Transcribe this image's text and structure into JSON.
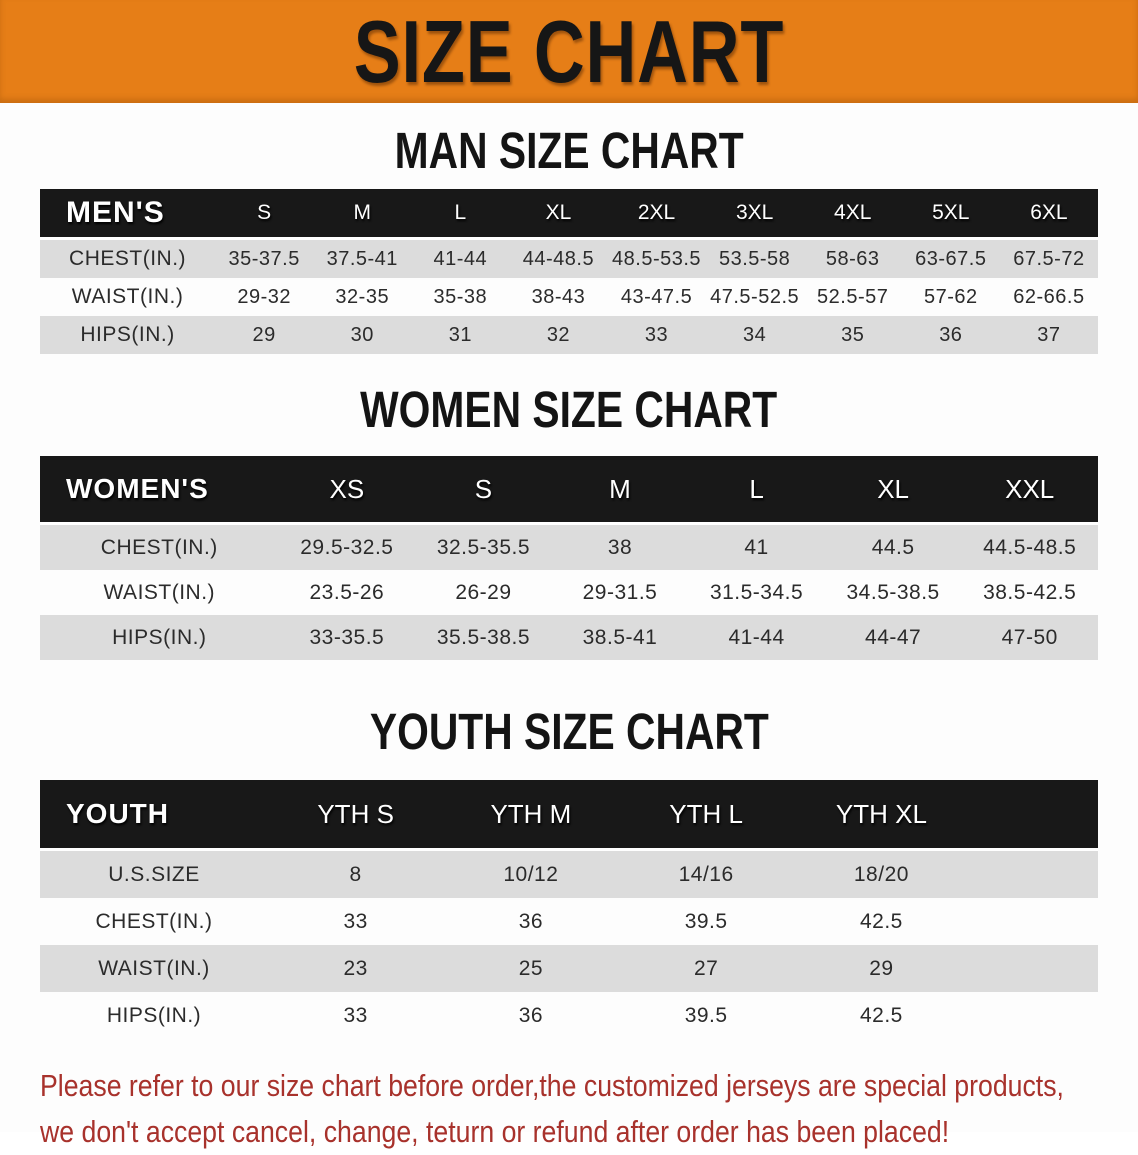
{
  "banner": {
    "title": "SIZE CHART"
  },
  "sections": [
    {
      "title": "MAN SIZE CHART",
      "header_label": "MEN'S",
      "columns": [
        "S",
        "M",
        "L",
        "XL",
        "2XL",
        "3XL",
        "4XL",
        "5XL",
        "6XL"
      ],
      "rows": [
        {
          "label": "CHEST(IN.)",
          "values": [
            "35-37.5",
            "37.5-41",
            "41-44",
            "44-48.5",
            "48.5-53.5",
            "53.5-58",
            "58-63",
            "63-67.5",
            "67.5-72"
          ]
        },
        {
          "label": "WAIST(IN.)",
          "values": [
            "29-32",
            "32-35",
            "35-38",
            "38-43",
            "43-47.5",
            "47.5-52.5",
            "52.5-57",
            "57-62",
            "62-66.5"
          ]
        },
        {
          "label": "HIPS(IN.)",
          "values": [
            "29",
            "30",
            "31",
            "32",
            "33",
            "34",
            "35",
            "36",
            "37"
          ]
        }
      ]
    },
    {
      "title": "WOMEN SIZE CHART",
      "header_label": "WOMEN'S",
      "columns": [
        "XS",
        "S",
        "M",
        "L",
        "XL",
        "XXL"
      ],
      "rows": [
        {
          "label": "CHEST(IN.)",
          "values": [
            "29.5-32.5",
            "32.5-35.5",
            "38",
            "41",
            "44.5",
            "44.5-48.5"
          ]
        },
        {
          "label": "WAIST(IN.)",
          "values": [
            "23.5-26",
            "26-29",
            "29-31.5",
            "31.5-34.5",
            "34.5-38.5",
            "38.5-42.5"
          ]
        },
        {
          "label": "HIPS(IN.)",
          "values": [
            "33-35.5",
            "35.5-38.5",
            "38.5-41",
            "41-44",
            "44-47",
            "47-50"
          ]
        }
      ]
    },
    {
      "title": "YOUTH SIZE CHART",
      "header_label": "YOUTH",
      "columns": [
        "YTH S",
        "YTH M",
        "YTH L",
        "YTH XL"
      ],
      "rows": [
        {
          "label": "U.S.SIZE",
          "values": [
            "8",
            "10/12",
            "14/16",
            "18/20"
          ]
        },
        {
          "label": "CHEST(IN.)",
          "values": [
            "33",
            "36",
            "39.5",
            "42.5"
          ]
        },
        {
          "label": "WAIST(IN.)",
          "values": [
            "23",
            "25",
            "27",
            "29"
          ]
        },
        {
          "label": "HIPS(IN.)",
          "values": [
            "33",
            "36",
            "39.5",
            "42.5"
          ]
        }
      ]
    }
  ],
  "footer": {
    "line1": "Please refer to our size chart before order,the customized jerseys are special products,",
    "line2": "we don't accept cancel, change, teturn or refund after order has been placed!"
  },
  "colors": {
    "page_bg": "#FDFDFD",
    "banner_bg": "#E67E17",
    "banner_text": "#161616",
    "table_header_bg": "#181818",
    "table_header_text": "#FFFFFF",
    "row_stripe": "#DCDCDC",
    "row_text": "#2B2B2B",
    "title_text": "#141414",
    "footer_text": "#A8322C"
  }
}
